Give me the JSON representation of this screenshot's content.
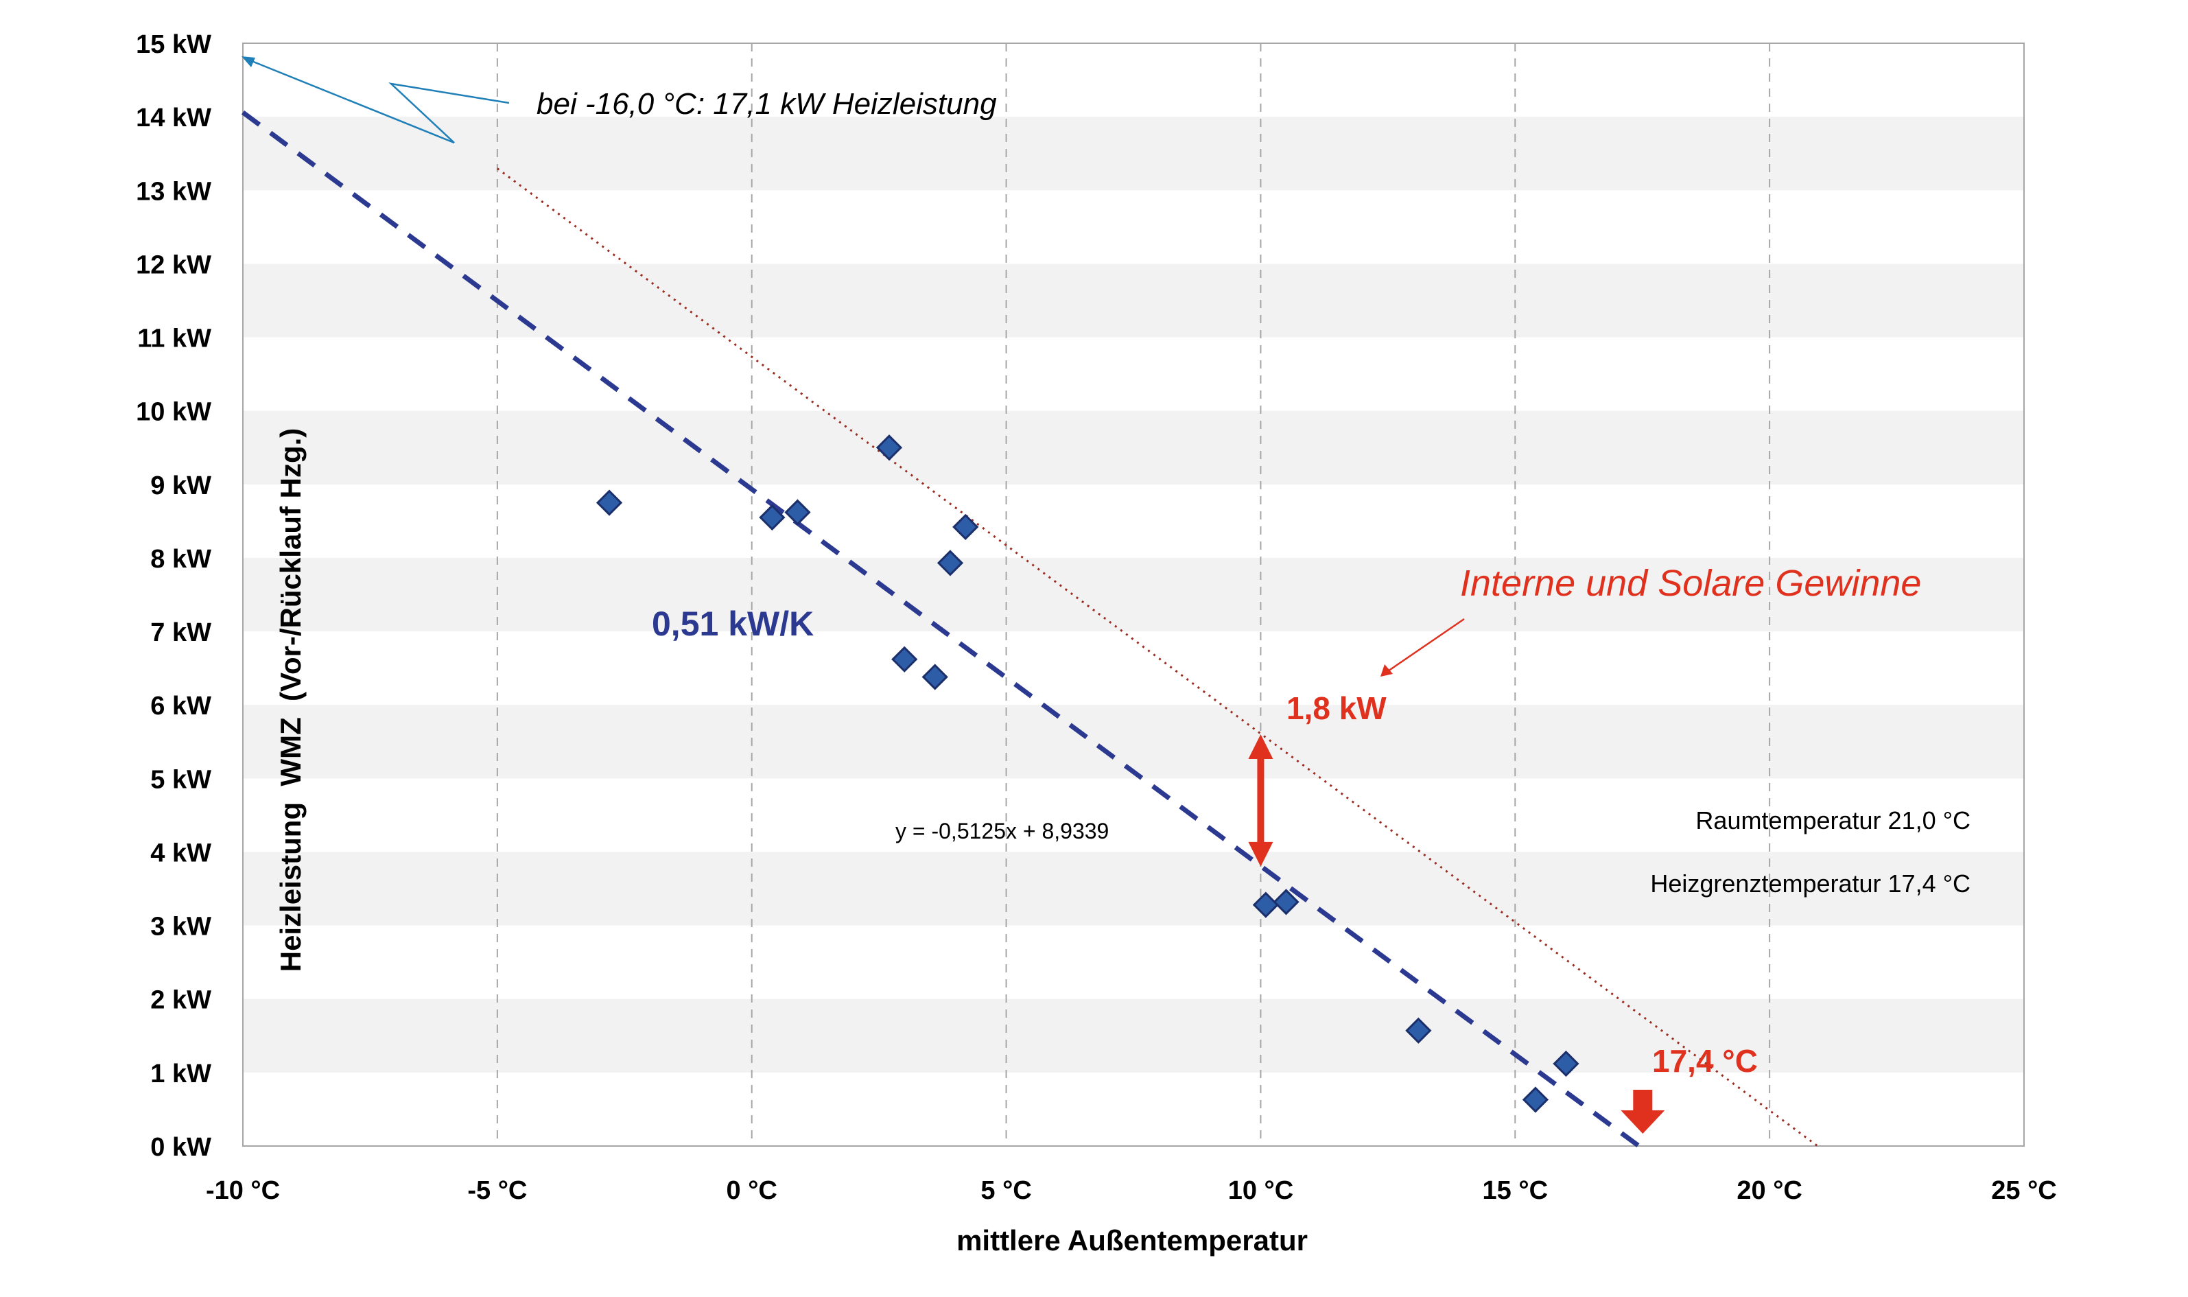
{
  "chart_data": {
    "type": "scatter",
    "xlabel": "mittlere Außentemperatur",
    "ylabel": "Heizleistung  WMZ  (Vor-/Rücklauf Hzg.)",
    "xlim": [
      -10,
      25
    ],
    "ylim": [
      0,
      15
    ],
    "x_ticks": [
      -10,
      -5,
      0,
      5,
      10,
      15,
      20,
      25
    ],
    "x_tick_labels": [
      "-10 °C",
      "-5 °C",
      "0 °C",
      "5 °C",
      "10 °C",
      "15 °C",
      "20 °C",
      "25 °C"
    ],
    "y_ticks": [
      0,
      1,
      2,
      3,
      4,
      5,
      6,
      7,
      8,
      9,
      10,
      11,
      12,
      13,
      14,
      15
    ],
    "y_tick_labels": [
      "0 kW",
      "1 kW",
      "2 kW",
      "3 kW",
      "4 kW",
      "5 kW",
      "6 kW",
      "7 kW",
      "8 kW",
      "9 kW",
      "10 kW",
      "11 kW",
      "12 kW",
      "13 kW",
      "14 kW",
      "15 kW"
    ],
    "grid": {
      "vertical": "dashed",
      "horizontal_bands": true
    },
    "points": [
      {
        "x": -2.8,
        "y": 8.75
      },
      {
        "x": 0.4,
        "y": 8.55
      },
      {
        "x": 0.9,
        "y": 8.62
      },
      {
        "x": 2.7,
        "y": 9.5
      },
      {
        "x": 3.0,
        "y": 6.62
      },
      {
        "x": 3.6,
        "y": 6.38
      },
      {
        "x": 3.9,
        "y": 7.93
      },
      {
        "x": 4.2,
        "y": 8.42
      },
      {
        "x": 10.1,
        "y": 3.28
      },
      {
        "x": 10.5,
        "y": 3.32
      },
      {
        "x": 13.1,
        "y": 1.57
      },
      {
        "x": 15.4,
        "y": 0.63
      },
      {
        "x": 16.0,
        "y": 1.12
      }
    ],
    "trendline": {
      "equation": "y = -0,5125x + 8,9339",
      "slope": -0.5125,
      "intercept": 8.9339,
      "x_range": [
        -10,
        17.43
      ],
      "style": "dashed",
      "color": "#2b3990"
    },
    "offset_line": {
      "x_range": [
        -5,
        21
      ],
      "style": "dotted",
      "color": "#9b2d20"
    },
    "annotations": {
      "extrapolation": "bei -16,0 °C: 17,1 kW Heizleistung",
      "slope_label": "0,51 kW/K",
      "gains_label": "Interne und Solare Gewinne",
      "gap_label": "1,8 kW",
      "limit_label": "17,4 °C",
      "room_temp": "Raumtemperatur 21,0 °C",
      "limit_temp": "Heizgrenztemperatur 17,4 °C"
    },
    "gap_arrow": {
      "x": 10,
      "y_low": 3.8,
      "y_high": 5.6
    },
    "limit_arrow_x": 17.4,
    "colors": {
      "marker": "#2e5da8",
      "marker_edge": "#1b2f6b",
      "annotation_red": "#e0301e",
      "annotation_blue": "#2b3990",
      "pointer_blue": "#1f7fb8",
      "band": "#f2f2f2",
      "grid": "#a6a6a6"
    }
  }
}
